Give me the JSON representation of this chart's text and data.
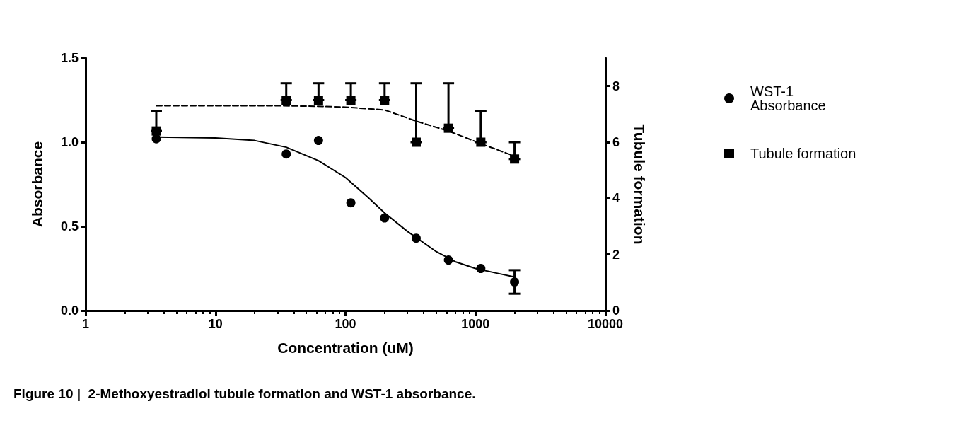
{
  "chart_data": {
    "type": "scatter",
    "annotations": [
      "Figure 10 |  2-Methoxyestradiol tubule formation and WST-1 absorbance."
    ],
    "xlabel": "Concentration (uM)",
    "ylabel": "Absorbance",
    "y2label": "Tubule formation",
    "log": "x",
    "xlim": [
      1,
      10000
    ],
    "xticks": [
      1,
      10,
      100,
      1000,
      10000
    ],
    "ylim": [
      0,
      1.5
    ],
    "yticks": [
      {
        "value": 0,
        "label": "0.0"
      },
      0.5,
      {
        "value": 1,
        "label": "1.0"
      },
      1.5
    ],
    "y2lim": [
      0,
      9
    ],
    "y2ticks": [
      0,
      2,
      4,
      6,
      8
    ],
    "grid": false,
    "legend": "right",
    "series": [
      {
        "type": "line",
        "color": "#000000",
        "line_style": "solid",
        "marker": "none",
        "x": [
          3.5,
          10,
          20,
          35,
          62,
          100,
          150,
          200,
          300,
          500,
          700,
          1000,
          1500,
          2000
        ],
        "values": [
          1.03,
          1.025,
          1.01,
          0.97,
          0.89,
          0.79,
          0.67,
          0.58,
          0.47,
          0.35,
          0.29,
          0.25,
          0.22,
          0.2
        ]
      },
      {
        "type": "line",
        "axis": "y2",
        "color": "#000000",
        "line_style": "dashed",
        "marker": "none",
        "x": [
          3.5,
          30,
          60,
          100,
          200,
          350,
          620,
          1100,
          2000
        ],
        "values": [
          7.3,
          7.3,
          7.28,
          7.25,
          7.15,
          6.75,
          6.4,
          5.95,
          5.5
        ]
      },
      {
        "name": "WST-1 Absorbance",
        "color": "#000000",
        "marker": "circle",
        "x": [
          3.5,
          35,
          62,
          110,
          200,
          350,
          620,
          1100,
          2000
        ],
        "values": [
          1.02,
          0.93,
          1.01,
          0.64,
          0.55,
          0.43,
          0.3,
          0.25,
          0.17
        ],
        "errors": [
          null,
          null,
          null,
          null,
          null,
          null,
          null,
          null,
          0.07
        ]
      },
      {
        "name": "Tubule formation",
        "axis": "y2",
        "color": "#000000",
        "marker": "square",
        "x": [
          3.5,
          35,
          62,
          110,
          200,
          350,
          620,
          1100,
          2000
        ],
        "values": [
          6.4,
          7.5,
          7.5,
          7.5,
          7.5,
          6,
          6.5,
          6,
          5.4
        ],
        "errors": [
          [
            6.4,
            7.1
          ],
          [
            7.5,
            8.1
          ],
          [
            7.5,
            8.1
          ],
          [
            7.5,
            8.1
          ],
          [
            7.5,
            8.1
          ],
          [
            6,
            8.1
          ],
          [
            6.5,
            8.1
          ],
          [
            6,
            7.1
          ],
          [
            5.4,
            6
          ]
        ]
      }
    ]
  }
}
